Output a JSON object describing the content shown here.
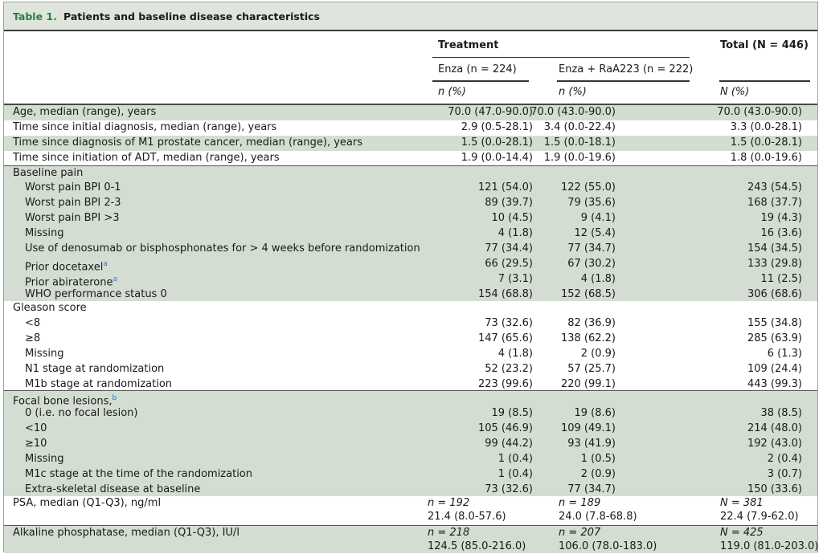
{
  "table": {
    "number": "Table 1.",
    "title": "Patients and baseline disease characteristics",
    "header": {
      "treatment": "Treatment",
      "total": "Total (N = 446)",
      "enza": "Enza (n = 224)",
      "enza_ra": "Enza + RaA223 (n = 222)",
      "n_pct_1": "n (%)",
      "n_pct_2": "n (%)",
      "n_pct_3": "N (%)"
    },
    "rows": [
      {
        "label": "Age, median (range), years",
        "enza": "70.0 (47.0-90.0)",
        "combo": "70.0 (43.0-90.0)",
        "total": "70.0 (43.0-90.0)"
      },
      {
        "label": "Time since initial diagnosis, median (range), years",
        "enza": "2.9 (0.5-28.1)",
        "combo": "3.4 (0.0-22.4)",
        "total": "3.3 (0.0-28.1)"
      },
      {
        "label": "Time since diagnosis of M1 prostate cancer, median (range), years",
        "enza": "1.5 (0.0-28.1)",
        "combo": "1.5 (0.0-18.1)",
        "total": "1.5 (0.0-28.1)"
      },
      {
        "label": "Time since initiation of ADT, median (range), years",
        "enza": "1.9 (0.0-14.4)",
        "combo": "1.9 (0.0-19.6)",
        "total": "1.8 (0.0-19.6)"
      },
      {
        "label": "Baseline pain",
        "enza": "",
        "combo": "",
        "total": ""
      },
      {
        "label": "Worst pain BPI 0-1",
        "enza": "121 (54.0)",
        "combo": "122 (55.0)",
        "total": "243 (54.5)"
      },
      {
        "label": "Worst pain BPI 2-3",
        "enza": "89 (39.7)",
        "combo": "79 (35.6)",
        "total": "168 (37.7)"
      },
      {
        "label": "Worst pain BPI >3",
        "enza": "10 (4.5)",
        "combo": "9 (4.1)",
        "total": "19 (4.3)"
      },
      {
        "label": "Missing",
        "enza": "4 (1.8)",
        "combo": "12 (5.4)",
        "total": "16 (3.6)"
      },
      {
        "label": "Use of denosumab or bisphosphonates for > 4 weeks before randomization",
        "enza": "77 (34.4)",
        "combo": "77 (34.7)",
        "total": "154 (34.5)"
      },
      {
        "label": "Prior docetaxel",
        "sup": "a",
        "enza": "66 (29.5)",
        "combo": "67 (30.2)",
        "total": "133 (29.8)"
      },
      {
        "label": "Prior abiraterone",
        "sup": "a",
        "enza": "7 (3.1)",
        "combo": "4 (1.8)",
        "total": "11 (2.5)"
      },
      {
        "label": "WHO performance status 0",
        "enza": "154 (68.8)",
        "combo": "152 (68.5)",
        "total": "306 (68.6)"
      },
      {
        "label": "Gleason score",
        "enza": "",
        "combo": "",
        "total": ""
      },
      {
        "label": "<8",
        "enza": "73 (32.6)",
        "combo": "82 (36.9)",
        "total": "155 (34.8)"
      },
      {
        "label": "≥8",
        "enza": "147 (65.6)",
        "combo": "138 (62.2)",
        "total": "285 (63.9)"
      },
      {
        "label": "Missing",
        "enza": "4 (1.8)",
        "combo": "2 (0.9)",
        "total": "6 (1.3)"
      },
      {
        "label": "N1 stage at randomization",
        "enza": "52 (23.2)",
        "combo": "57 (25.7)",
        "total": "109 (24.4)"
      },
      {
        "label": "M1b stage at randomization",
        "enza": "223 (99.6)",
        "combo": "220 (99.1)",
        "total": "443 (99.3)"
      },
      {
        "label": "Focal bone lesions,",
        "sup": "b",
        "enza": "",
        "combo": "",
        "total": ""
      },
      {
        "label": "0 (i.e. no focal lesion)",
        "enza": "19 (8.5)",
        "combo": "19 (8.6)",
        "total": "38 (8.5)"
      },
      {
        "label": "<10",
        "enza": "105 (46.9)",
        "combo": "109 (49.1)",
        "total": "214 (48.0)"
      },
      {
        "label": "≥10",
        "enza": "99 (44.2)",
        "combo": "93 (41.9)",
        "total": "192 (43.0)"
      },
      {
        "label": "Missing",
        "enza": "1 (0.4)",
        "combo": "1 (0.5)",
        "total": "2 (0.4)"
      },
      {
        "label": "M1c stage at the time of the randomization",
        "enza": "1 (0.4)",
        "combo": "2 (0.9)",
        "total": "3 (0.7)"
      },
      {
        "label": "Extra-skeletal disease at baseline",
        "enza": "73 (32.6)",
        "combo": "77 (34.7)",
        "total": "150 (33.6)"
      },
      {
        "label": "PSA, median (Q1-Q3), ng/ml",
        "enza_n": "n = 192",
        "combo_n": "n = 189",
        "total_n": "N = 381",
        "enza": "21.4 (8.0-57.6)",
        "combo": "24.0 (7.8-68.8)",
        "total": "22.4 (7.9-62.0)"
      },
      {
        "label": "Alkaline phosphatase, median (Q1-Q3), IU/l",
        "enza_n": "n = 218",
        "combo_n": "n = 207",
        "total_n": "N = 425",
        "enza": "124.5 (85.0-216.0)",
        "combo": "106.0 (78.0-183.0)",
        "total": "119.0 (81.0-203.0)"
      }
    ]
  }
}
